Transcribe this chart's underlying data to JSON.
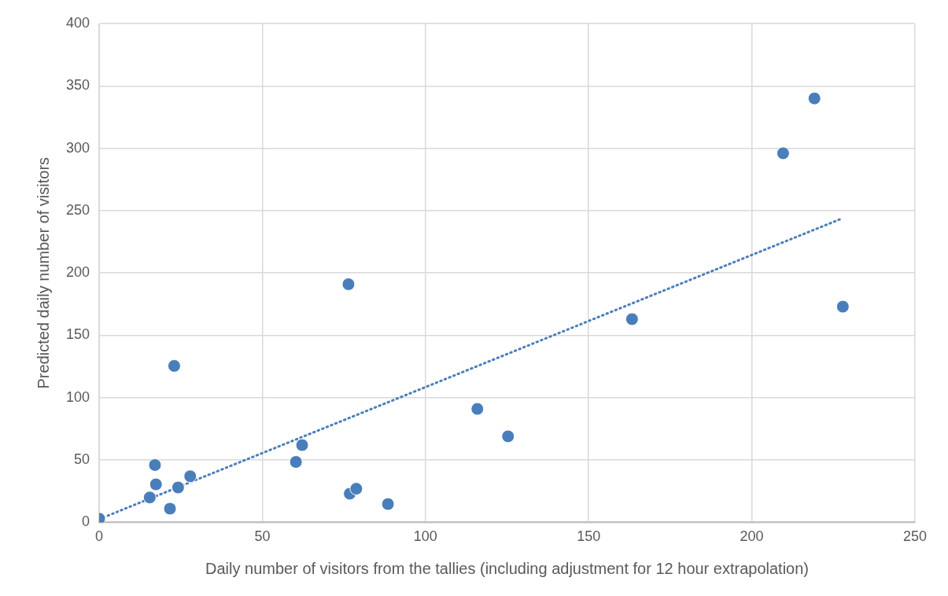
{
  "chart_data": {
    "type": "scatter",
    "xlabel": "Daily number of visitors from the tallies (including adjustment for 12 hour extrapolation)",
    "ylabel": "Predicted daily number of visitors",
    "xlim": [
      0,
      250
    ],
    "xticks": [
      0,
      50,
      100,
      150,
      200,
      250
    ],
    "ylim": [
      0,
      400
    ],
    "yticks": [
      0,
      50,
      100,
      150,
      200,
      250,
      300,
      350,
      400
    ],
    "grid": true,
    "legend": false,
    "marker": "circle",
    "series": [
      {
        "color": "#4a7ebb",
        "x": [
          0,
          15.5,
          17.1,
          17.4,
          21.7,
          23,
          24.2,
          27.9,
          60.3,
          62.2,
          76.4,
          76.8,
          78.8,
          88.5,
          115.9,
          125.3,
          163.3,
          209.6,
          219.2,
          227.9
        ],
        "values": [
          3,
          20,
          46,
          30.5,
          11,
          125.5,
          28,
          37,
          48.5,
          62,
          191,
          23,
          27,
          14.7,
          91,
          69,
          163,
          296,
          340,
          173
        ]
      },
      {
        "type": "line",
        "line_style": "dotted",
        "marker": "none",
        "color": "#4a7ebb",
        "x": [
          0,
          227.9
        ],
        "values": [
          2.6,
          244
        ]
      }
    ]
  }
}
